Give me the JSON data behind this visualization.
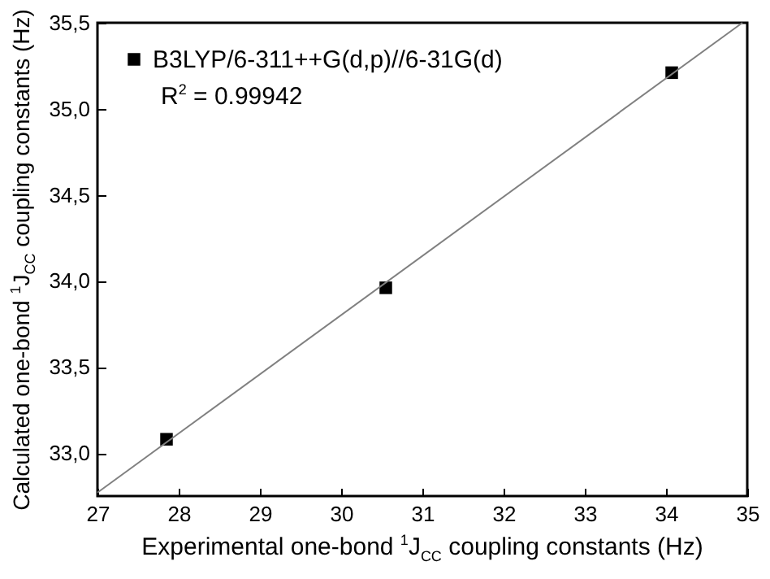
{
  "chart_data": {
    "type": "scatter",
    "xlabel": "Experimental one-bond $^{1}$J$_{CC}$ coupling constants (Hz)",
    "ylabel": "Calculated one-bond $^{1}$J$_{CC}$ coupling constants (Hz)",
    "annotations": [
      "R$^{2}$ = 0.99942"
    ],
    "series": [
      {
        "name": "B3LYP/6-311++G(d,p)//6-31G(d)",
        "marker": "square",
        "color": "#000000",
        "x": [
          27.85,
          30.55,
          34.07
        ],
        "values": [
          33.08,
          33.96,
          35.21
        ]
      },
      {
        "type": "line",
        "marker": "none",
        "color": "#808080",
        "x": [
          27,
          34.94
        ],
        "values": [
          32.77,
          35.5
        ]
      }
    ],
    "xlim": [
      27,
      35
    ],
    "xticks": [
      27,
      28,
      29,
      30,
      31,
      32,
      33,
      34,
      35
    ],
    "ylim": [
      32.75,
      35.5
    ],
    "yticks": [
      {
        "value": 33,
        "label": "33,0"
      },
      {
        "value": 33.5,
        "label": "33,5"
      },
      {
        "value": 34,
        "label": "34,0"
      },
      {
        "value": 34.5,
        "label": "34,5"
      },
      {
        "value": 35,
        "label": "35,0"
      },
      {
        "value": 35.5,
        "label": "35,5"
      }
    ],
    "legend": "top left",
    "grid": false
  }
}
